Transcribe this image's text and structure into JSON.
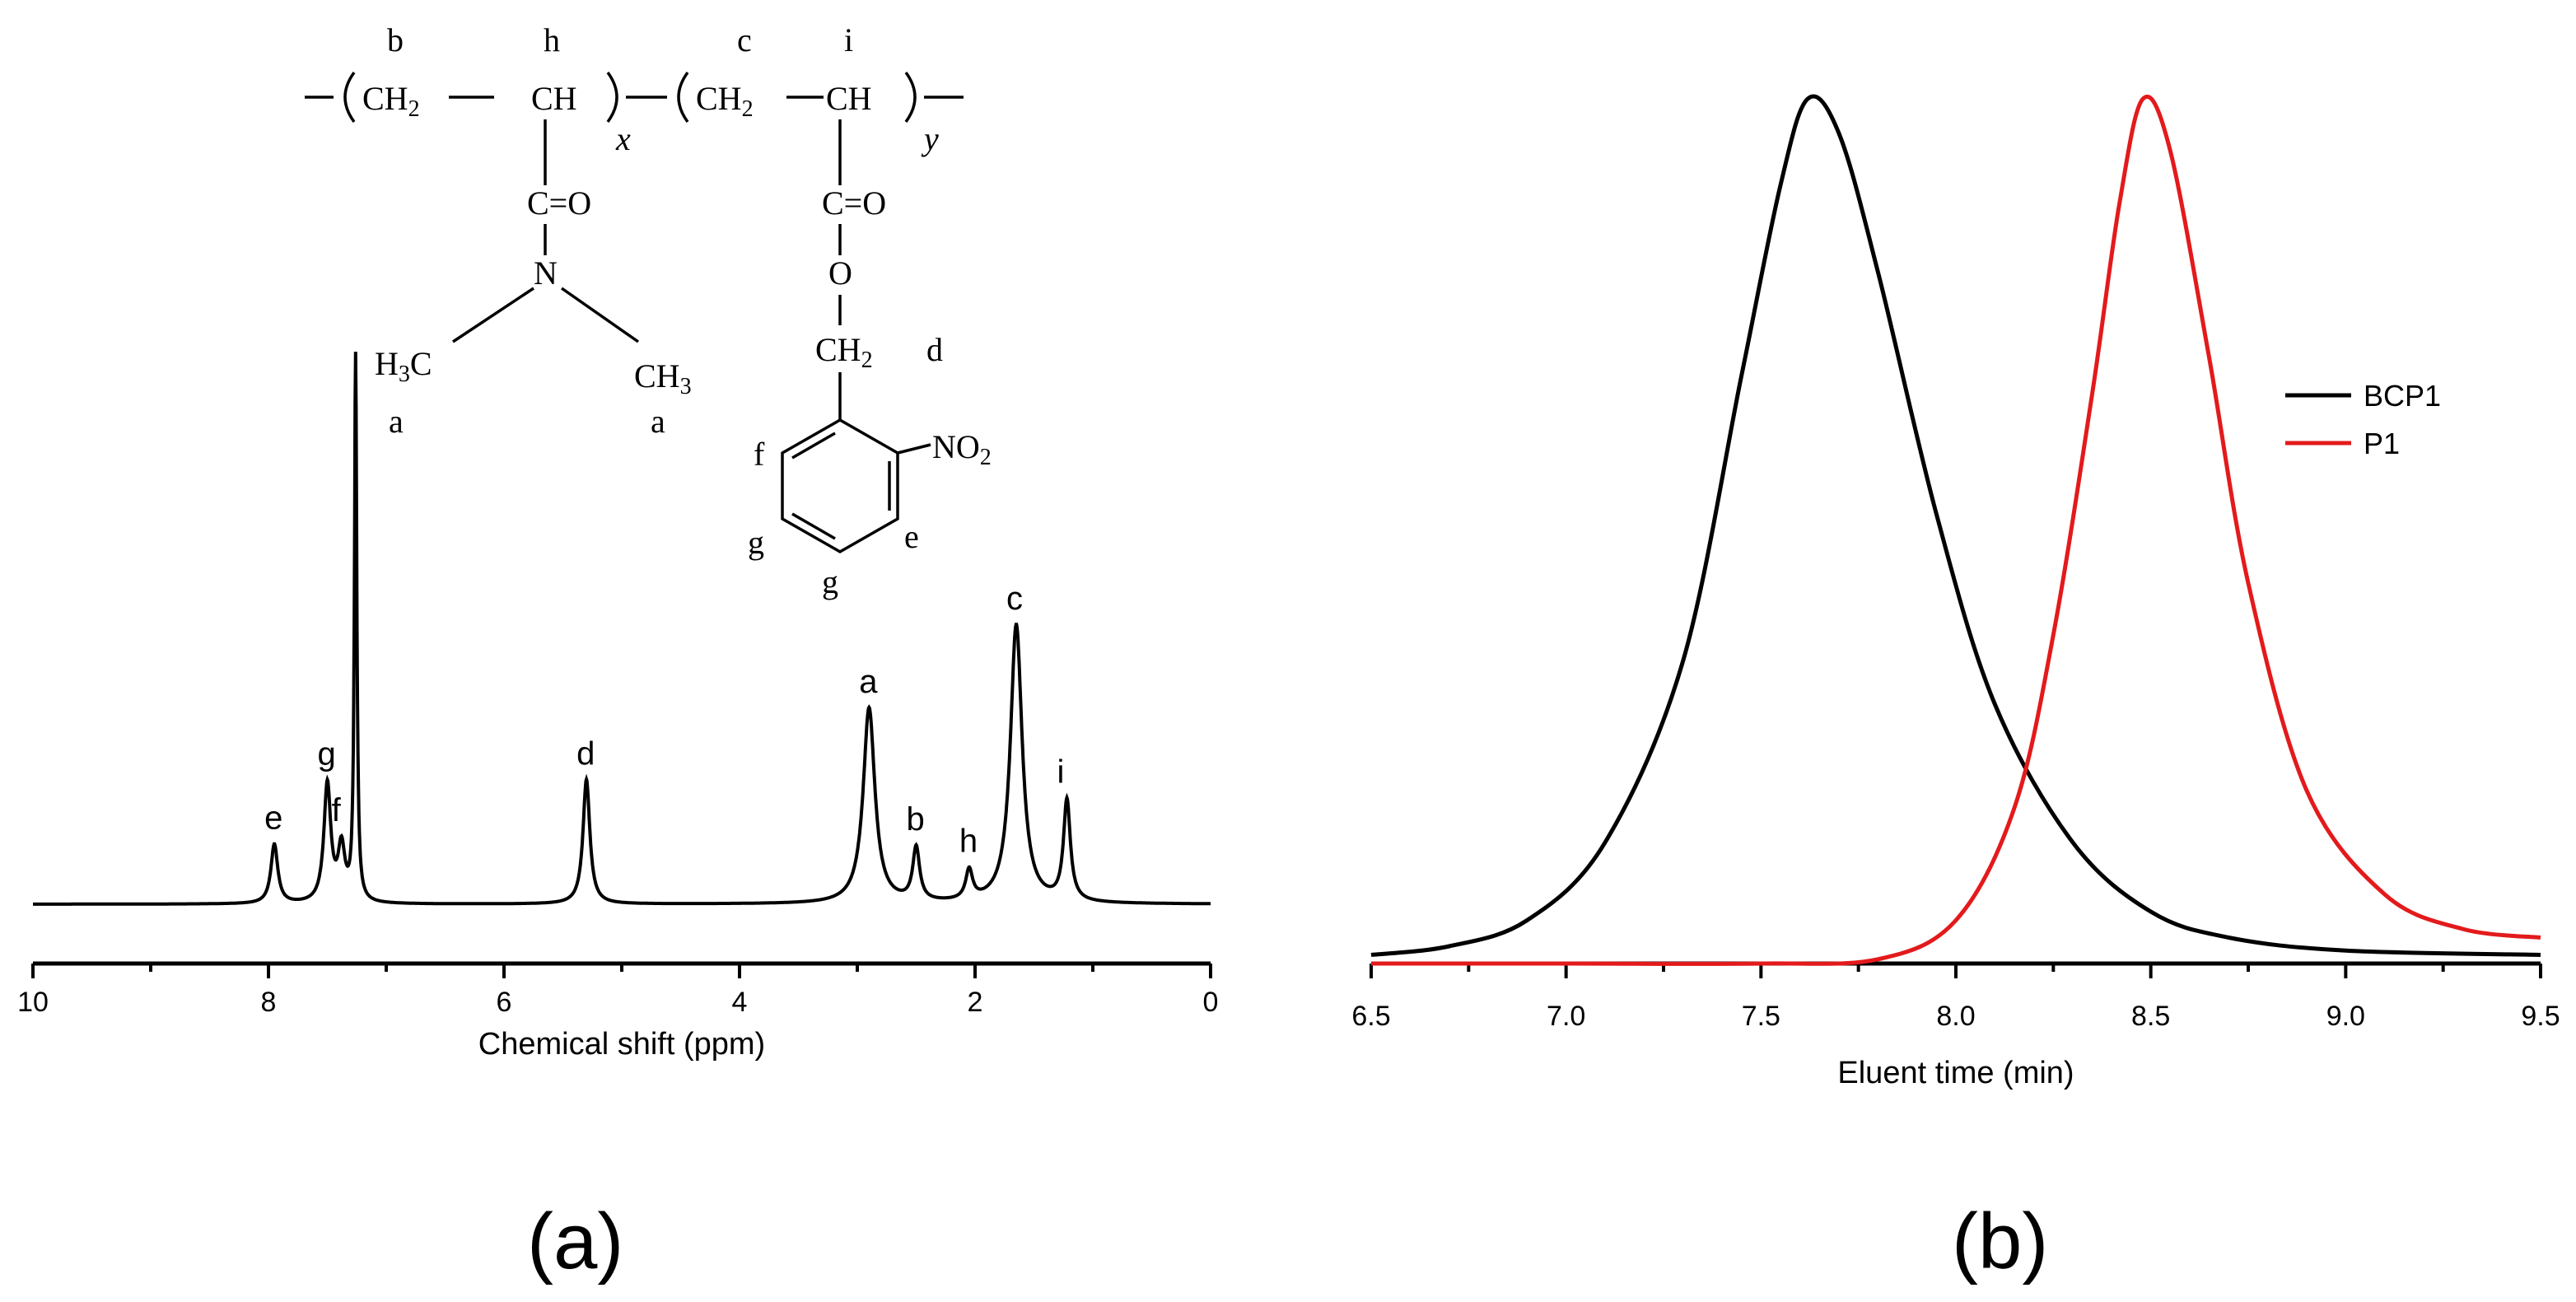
{
  "chart_data": [
    {
      "type": "line",
      "panel_label": "(a)",
      "xlabel": "Chemical shift (ppm)",
      "xlim": [
        10,
        0
      ],
      "x_reversed": true,
      "x_ticks": [
        "10",
        "8",
        "6",
        "4",
        "2",
        "0"
      ],
      "peaks": [
        {
          "label": "e",
          "x": 7.95,
          "y": 0.1
        },
        {
          "label": "g",
          "x": 7.5,
          "y": 0.2
        },
        {
          "label": "f",
          "x": 7.38,
          "y": 0.09
        },
        {
          "label": "",
          "x": 7.26,
          "y": 0.92
        },
        {
          "label": "d",
          "x": 5.3,
          "y": 0.21
        },
        {
          "label": "a",
          "x": 2.9,
          "y": 0.33
        },
        {
          "label": "b",
          "x": 2.5,
          "y": 0.09
        },
        {
          "label": "h",
          "x": 2.05,
          "y": 0.05
        },
        {
          "label": "c",
          "x": 1.65,
          "y": 0.47
        },
        {
          "label": "i",
          "x": 1.22,
          "y": 0.17
        }
      ],
      "structure": {
        "top_labels": [
          "b",
          "h",
          "c",
          "i"
        ],
        "ch2": "CH",
        "ch2_sub": "2",
        "ch": "CH",
        "x_sub": "x",
        "y_sub": "y",
        "co": "C=O",
        "n": "N",
        "o": "O",
        "h3c": "H",
        "h3c_sub": "3",
        "h3c_c": "C",
        "ch3": "CH",
        "ch3_sub": "3",
        "a_left": "a",
        "a_right": "a",
        "ch2_d": "CH",
        "ch2_d_sub": "2",
        "d_label": "d",
        "no2": "NO",
        "no2_sub": "2",
        "f_label": "f",
        "g_left": "g",
        "g_bottom": "g",
        "e_label": "e"
      }
    },
    {
      "type": "line",
      "panel_label": "(b)",
      "xlabel": "Eluent time (min)",
      "xlim": [
        6.5,
        9.5
      ],
      "x_ticks": [
        "6.5",
        "7.0",
        "7.5",
        "8.0",
        "8.5",
        "9.0",
        "9.5"
      ],
      "legend_position": "right",
      "series": [
        {
          "name": "BCP1",
          "color": "#000000",
          "points": [
            [
              6.5,
              0.01
            ],
            [
              6.7,
              0.02
            ],
            [
              6.9,
              0.05
            ],
            [
              7.1,
              0.14
            ],
            [
              7.3,
              0.35
            ],
            [
              7.45,
              0.68
            ],
            [
              7.55,
              0.9
            ],
            [
              7.62,
              1.0
            ],
            [
              7.7,
              0.96
            ],
            [
              7.8,
              0.8
            ],
            [
              7.95,
              0.52
            ],
            [
              8.1,
              0.3
            ],
            [
              8.3,
              0.14
            ],
            [
              8.5,
              0.06
            ],
            [
              8.7,
              0.03
            ],
            [
              9.0,
              0.015
            ],
            [
              9.5,
              0.01
            ]
          ]
        },
        {
          "name": "P1",
          "color": "#e31a1c",
          "points": [
            [
              6.5,
              0.0
            ],
            [
              7.0,
              0.0
            ],
            [
              7.5,
              0.0
            ],
            [
              7.8,
              0.005
            ],
            [
              8.0,
              0.05
            ],
            [
              8.15,
              0.18
            ],
            [
              8.25,
              0.38
            ],
            [
              8.35,
              0.66
            ],
            [
              8.42,
              0.88
            ],
            [
              8.48,
              1.0
            ],
            [
              8.55,
              0.94
            ],
            [
              8.65,
              0.7
            ],
            [
              8.75,
              0.44
            ],
            [
              8.9,
              0.2
            ],
            [
              9.1,
              0.08
            ],
            [
              9.3,
              0.04
            ],
            [
              9.5,
              0.03
            ]
          ]
        }
      ]
    }
  ]
}
